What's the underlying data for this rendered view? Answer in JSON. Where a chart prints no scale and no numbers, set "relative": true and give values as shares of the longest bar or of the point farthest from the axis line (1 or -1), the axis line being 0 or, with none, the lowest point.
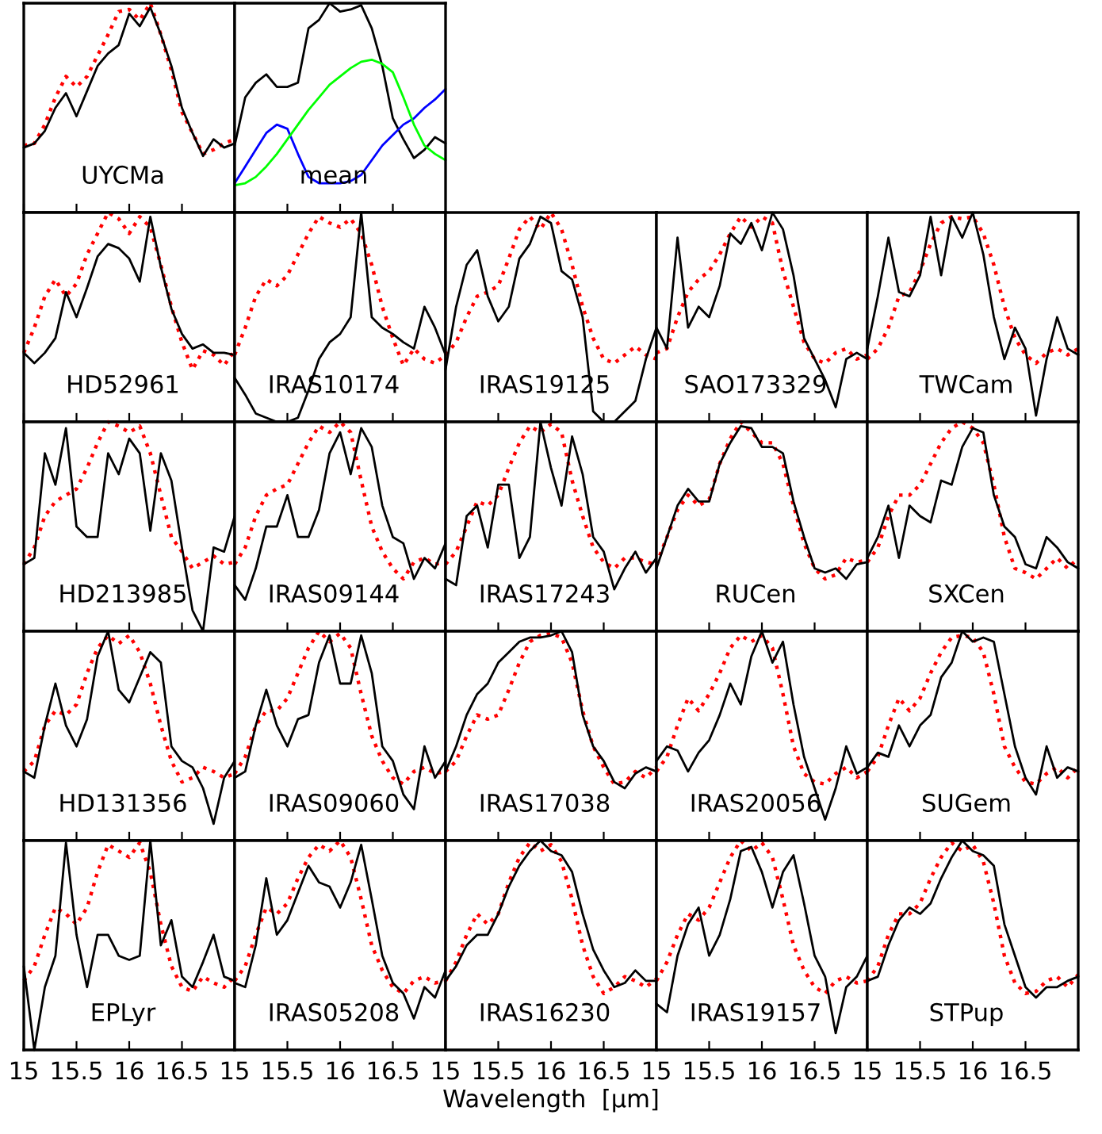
{
  "chart_data": [
    {
      "type": "line",
      "relative": true,
      "xlim": [
        15,
        17
      ],
      "xticks": [
        15,
        15.5,
        16,
        16.5
      ],
      "tick_labels": false,
      "annotations": [
        "UYCMa"
      ],
      "x": [
        15.0,
        15.1,
        15.2,
        15.3,
        15.4,
        15.5,
        15.6,
        15.7,
        15.8,
        15.9,
        16.0,
        16.1,
        16.2,
        16.3,
        16.4,
        16.5,
        16.6,
        16.7,
        16.8,
        16.9,
        17.0
      ],
      "series": [
        {
          "color": "#ff0000",
          "line_style": "dotted",
          "values": [
            0.32,
            0.33,
            0.42,
            0.55,
            0.65,
            0.6,
            0.65,
            0.75,
            0.85,
            0.96,
            0.97,
            0.92,
            1.0,
            0.85,
            0.68,
            0.48,
            0.38,
            0.28,
            0.3,
            0.33,
            0.35
          ]
        },
        {
          "color": "#000000",
          "line_style": "solid",
          "values": [
            0.31,
            0.33,
            0.39,
            0.5,
            0.57,
            0.46,
            0.58,
            0.7,
            0.76,
            0.8,
            0.95,
            0.89,
            0.98,
            0.85,
            0.7,
            0.5,
            0.38,
            0.27,
            0.35,
            0.31,
            0.33
          ]
        }
      ]
    },
    {
      "type": "line",
      "relative": true,
      "xlim": [
        15,
        17
      ],
      "xticks": [
        15,
        15.5,
        16,
        16.5
      ],
      "tick_labels": false,
      "annotations": [
        "mean"
      ],
      "x": [
        15.0,
        15.1,
        15.2,
        15.3,
        15.4,
        15.5,
        15.6,
        15.7,
        15.8,
        15.9,
        16.0,
        16.1,
        16.2,
        16.3,
        16.4,
        16.5,
        16.6,
        16.7,
        16.8,
        16.9,
        17.0
      ],
      "series": [
        {
          "color": "#000000",
          "line_style": "solid",
          "values": [
            0.32,
            0.55,
            0.62,
            0.66,
            0.6,
            0.6,
            0.62,
            0.88,
            0.92,
            1.0,
            0.96,
            0.97,
            0.99,
            0.88,
            0.7,
            0.45,
            0.35,
            0.26,
            0.3,
            0.36,
            0.33
          ]
        },
        {
          "color": "#0000ff",
          "line_style": "solid",
          "values": [
            0.14,
            0.22,
            0.3,
            0.38,
            0.42,
            0.4,
            0.28,
            0.17,
            0.14,
            0.14,
            0.14,
            0.15,
            0.18,
            0.25,
            0.32,
            0.37,
            0.42,
            0.45,
            0.5,
            0.54,
            0.59
          ]
        },
        {
          "color": "#00ff00",
          "line_style": "solid",
          "values": [
            0.13,
            0.14,
            0.17,
            0.22,
            0.28,
            0.35,
            0.42,
            0.49,
            0.55,
            0.61,
            0.65,
            0.69,
            0.72,
            0.73,
            0.71,
            0.67,
            0.55,
            0.42,
            0.32,
            0.28,
            0.25
          ]
        }
      ]
    },
    {
      "type": "line",
      "relative": true,
      "xlim": [
        15,
        17
      ],
      "xticks": [
        15,
        15.5,
        16,
        16.5
      ],
      "tick_labels": false,
      "annotations": [
        "HD52961"
      ],
      "x": [
        15.0,
        15.1,
        15.2,
        15.3,
        15.4,
        15.5,
        15.6,
        15.7,
        15.8,
        15.9,
        16.0,
        16.1,
        16.2,
        16.3,
        16.4,
        16.5,
        16.6,
        16.7,
        16.8,
        16.9,
        17.0
      ],
      "series": [
        {
          "color": "#ff0000",
          "line_style": "dotted",
          "values": [
            0.33,
            0.45,
            0.6,
            0.68,
            0.6,
            0.66,
            0.8,
            0.9,
            1.0,
            0.97,
            0.9,
            0.98,
            0.93,
            0.75,
            0.55,
            0.38,
            0.25,
            0.34,
            0.32,
            0.27,
            0.34
          ]
        },
        {
          "color": "#000000",
          "line_style": "solid",
          "values": [
            0.33,
            0.28,
            0.33,
            0.4,
            0.62,
            0.5,
            0.64,
            0.79,
            0.85,
            0.83,
            0.78,
            0.67,
            0.98,
            0.74,
            0.54,
            0.42,
            0.35,
            0.37,
            0.33,
            0.33,
            0.32
          ]
        }
      ]
    },
    {
      "type": "line",
      "relative": true,
      "xlim": [
        15,
        17
      ],
      "xticks": [
        15,
        15.5,
        16,
        16.5
      ],
      "tick_labels": false,
      "annotations": [
        "IRAS10174"
      ],
      "x": [
        15.0,
        15.1,
        15.2,
        15.3,
        15.4,
        15.5,
        15.6,
        15.7,
        15.8,
        15.9,
        16.0,
        16.1,
        16.2,
        16.3,
        16.4,
        16.5,
        16.6,
        16.7,
        16.8,
        16.9,
        17.0
      ],
      "series": [
        {
          "color": "#ff0000",
          "line_style": "dotted",
          "values": [
            0.32,
            0.45,
            0.6,
            0.68,
            0.65,
            0.7,
            0.8,
            0.9,
            0.98,
            0.95,
            0.93,
            0.97,
            0.9,
            0.75,
            0.55,
            0.4,
            0.27,
            0.35,
            0.3,
            0.28,
            0.32
          ]
        },
        {
          "color": "#000000",
          "line_style": "solid",
          "values": [
            0.21,
            0.13,
            0.04,
            0.02,
            0.0,
            0.0,
            0.02,
            0.15,
            0.3,
            0.38,
            0.42,
            0.5,
            1.0,
            0.5,
            0.45,
            0.42,
            0.38,
            0.35,
            0.55,
            0.45,
            0.32
          ]
        }
      ]
    },
    {
      "type": "line",
      "relative": true,
      "xlim": [
        15,
        17
      ],
      "xticks": [
        15,
        15.5,
        16,
        16.5
      ],
      "tick_labels": false,
      "annotations": [
        "IRAS19125"
      ],
      "x": [
        15.0,
        15.1,
        15.2,
        15.3,
        15.4,
        15.5,
        15.6,
        15.7,
        15.8,
        15.9,
        16.0,
        16.1,
        16.2,
        16.3,
        16.4,
        16.5,
        16.6,
        16.7,
        16.8,
        16.9,
        17.0
      ],
      "series": [
        {
          "color": "#ff0000",
          "line_style": "dotted",
          "values": [
            0.32,
            0.38,
            0.5,
            0.6,
            0.62,
            0.65,
            0.78,
            0.92,
            0.98,
            0.92,
            1.0,
            0.92,
            0.75,
            0.55,
            0.4,
            0.3,
            0.28,
            0.32,
            0.36,
            0.32,
            0.3
          ]
        },
        {
          "color": "#000000",
          "line_style": "solid",
          "values": [
            0.25,
            0.55,
            0.75,
            0.82,
            0.6,
            0.48,
            0.55,
            0.78,
            0.85,
            0.98,
            0.95,
            0.72,
            0.68,
            0.5,
            0.05,
            0.0,
            0.0,
            0.05,
            0.1,
            0.3,
            0.45
          ]
        }
      ]
    },
    {
      "type": "line",
      "relative": true,
      "xlim": [
        15,
        17
      ],
      "xticks": [
        15,
        15.5,
        16,
        16.5
      ],
      "tick_labels": false,
      "annotations": [
        "SAO173329"
      ],
      "x": [
        15.0,
        15.1,
        15.2,
        15.3,
        15.4,
        15.5,
        15.6,
        15.7,
        15.8,
        15.9,
        16.0,
        16.1,
        16.2,
        16.3,
        16.4,
        16.5,
        16.6,
        16.7,
        16.8,
        16.9,
        17.0
      ],
      "series": [
        {
          "color": "#ff0000",
          "line_style": "dotted",
          "values": [
            0.33,
            0.35,
            0.5,
            0.62,
            0.68,
            0.72,
            0.8,
            0.9,
            0.98,
            0.93,
            0.98,
            0.95,
            0.72,
            0.55,
            0.38,
            0.3,
            0.28,
            0.33,
            0.35,
            0.3,
            0.32
          ]
        },
        {
          "color": "#000000",
          "line_style": "solid",
          "values": [
            0.45,
            0.35,
            0.88,
            0.45,
            0.55,
            0.5,
            0.65,
            0.9,
            0.85,
            0.95,
            0.82,
            1.0,
            0.92,
            0.7,
            0.4,
            0.3,
            0.2,
            0.07,
            0.3,
            0.33,
            0.3
          ]
        }
      ]
    },
    {
      "type": "line",
      "relative": true,
      "xlim": [
        15,
        17
      ],
      "xticks": [
        15,
        15.5,
        16,
        16.5
      ],
      "tick_labels": false,
      "annotations": [
        "TWCam"
      ],
      "x": [
        15.0,
        15.1,
        15.2,
        15.3,
        15.4,
        15.5,
        15.6,
        15.7,
        15.8,
        15.9,
        16.0,
        16.1,
        16.2,
        16.3,
        16.4,
        16.5,
        16.6,
        16.7,
        16.8,
        16.9,
        17.0
      ],
      "series": [
        {
          "color": "#ff0000",
          "line_style": "dotted",
          "values": [
            0.3,
            0.35,
            0.45,
            0.6,
            0.62,
            0.72,
            0.85,
            0.95,
            0.98,
            0.97,
            0.98,
            0.9,
            0.75,
            0.55,
            0.4,
            0.32,
            0.28,
            0.33,
            0.35,
            0.32,
            0.35
          ]
        },
        {
          "color": "#000000",
          "line_style": "solid",
          "values": [
            0.35,
            0.6,
            0.88,
            0.62,
            0.6,
            0.7,
            0.98,
            0.7,
            0.98,
            0.88,
            1.0,
            0.8,
            0.5,
            0.3,
            0.45,
            0.35,
            0.03,
            0.3,
            0.5,
            0.35,
            0.32
          ]
        }
      ]
    },
    {
      "type": "line",
      "relative": true,
      "xlim": [
        15,
        17
      ],
      "xticks": [
        15,
        15.5,
        16,
        16.5
      ],
      "tick_labels": false,
      "annotations": [
        "HD213985"
      ],
      "x": [
        15.0,
        15.1,
        15.2,
        15.3,
        15.4,
        15.5,
        15.6,
        15.7,
        15.8,
        15.9,
        16.0,
        16.1,
        16.2,
        16.3,
        16.4,
        16.5,
        16.6,
        16.7,
        16.8,
        16.9,
        17.0
      ],
      "series": [
        {
          "color": "#ff0000",
          "line_style": "dotted",
          "values": [
            0.32,
            0.4,
            0.55,
            0.62,
            0.65,
            0.68,
            0.78,
            0.9,
            1.0,
            0.98,
            0.95,
            0.98,
            0.85,
            0.65,
            0.45,
            0.38,
            0.3,
            0.33,
            0.36,
            0.32,
            0.33
          ]
        },
        {
          "color": "#000000",
          "line_style": "solid",
          "values": [
            0.32,
            0.35,
            0.85,
            0.7,
            0.97,
            0.5,
            0.45,
            0.45,
            0.85,
            0.75,
            0.92,
            0.85,
            0.48,
            0.85,
            0.72,
            0.4,
            0.1,
            0.0,
            0.4,
            0.38,
            0.55
          ]
        }
      ]
    },
    {
      "type": "line",
      "relative": true,
      "xlim": [
        15,
        17
      ],
      "xticks": [
        15,
        15.5,
        16,
        16.5
      ],
      "tick_labels": false,
      "annotations": [
        "IRAS09144"
      ],
      "x": [
        15.0,
        15.1,
        15.2,
        15.3,
        15.4,
        15.5,
        15.6,
        15.7,
        15.8,
        15.9,
        16.0,
        16.1,
        16.2,
        16.3,
        16.4,
        16.5,
        16.6,
        16.7,
        16.8,
        16.9,
        17.0
      ],
      "series": [
        {
          "color": "#ff0000",
          "line_style": "dotted",
          "values": [
            0.32,
            0.4,
            0.55,
            0.65,
            0.68,
            0.7,
            0.8,
            0.9,
            0.98,
            0.95,
            1.0,
            0.95,
            0.72,
            0.5,
            0.38,
            0.3,
            0.25,
            0.33,
            0.35,
            0.32,
            0.33
          ]
        },
        {
          "color": "#000000",
          "line_style": "solid",
          "values": [
            0.22,
            0.15,
            0.3,
            0.5,
            0.5,
            0.65,
            0.45,
            0.45,
            0.58,
            0.85,
            0.95,
            0.75,
            0.97,
            0.88,
            0.6,
            0.45,
            0.42,
            0.25,
            0.35,
            0.3,
            0.42
          ]
        }
      ]
    },
    {
      "type": "line",
      "relative": true,
      "xlim": [
        15,
        17
      ],
      "xticks": [
        15,
        15.5,
        16,
        16.5
      ],
      "tick_labels": false,
      "annotations": [
        "IRAS17243"
      ],
      "x": [
        15.0,
        15.1,
        15.2,
        15.3,
        15.4,
        15.5,
        15.6,
        15.7,
        15.8,
        15.9,
        16.0,
        16.1,
        16.2,
        16.3,
        16.4,
        16.5,
        16.6,
        16.7,
        16.8,
        16.9,
        17.0
      ],
      "series": [
        {
          "color": "#ff0000",
          "line_style": "dotted",
          "values": [
            0.32,
            0.38,
            0.5,
            0.62,
            0.6,
            0.65,
            0.78,
            0.9,
            0.98,
            0.95,
            0.99,
            0.95,
            0.72,
            0.55,
            0.4,
            0.33,
            0.3,
            0.35,
            0.35,
            0.33,
            0.32
          ]
        },
        {
          "color": "#000000",
          "line_style": "solid",
          "values": [
            0.25,
            0.22,
            0.55,
            0.6,
            0.4,
            0.7,
            0.7,
            0.35,
            0.45,
            1.0,
            0.78,
            0.6,
            0.93,
            0.75,
            0.45,
            0.38,
            0.2,
            0.3,
            0.38,
            0.28,
            0.35
          ]
        }
      ]
    },
    {
      "type": "line",
      "relative": true,
      "xlim": [
        15,
        17
      ],
      "xticks": [
        15,
        15.5,
        16,
        16.5
      ],
      "tick_labels": false,
      "annotations": [
        "RUCen"
      ],
      "x": [
        15.0,
        15.1,
        15.2,
        15.3,
        15.4,
        15.5,
        15.6,
        15.7,
        15.8,
        15.9,
        16.0,
        16.1,
        16.2,
        16.3,
        16.4,
        16.5,
        16.6,
        16.7,
        16.8,
        16.9,
        17.0
      ],
      "series": [
        {
          "color": "#ff0000",
          "line_style": "dotted",
          "values": [
            0.32,
            0.45,
            0.58,
            0.65,
            0.6,
            0.63,
            0.8,
            0.92,
            1.0,
            0.95,
            0.9,
            0.9,
            0.8,
            0.6,
            0.42,
            0.3,
            0.25,
            0.27,
            0.35,
            0.33,
            0.34
          ]
        },
        {
          "color": "#000000",
          "line_style": "solid",
          "values": [
            0.3,
            0.45,
            0.6,
            0.68,
            0.62,
            0.62,
            0.8,
            0.9,
            0.98,
            0.97,
            0.88,
            0.88,
            0.85,
            0.62,
            0.45,
            0.3,
            0.28,
            0.3,
            0.25,
            0.32,
            0.33
          ]
        }
      ]
    },
    {
      "type": "line",
      "relative": true,
      "xlim": [
        15,
        17
      ],
      "xticks": [
        15,
        15.5,
        16,
        16.5
      ],
      "tick_labels": false,
      "annotations": [
        "SXCen"
      ],
      "x": [
        15.0,
        15.1,
        15.2,
        15.3,
        15.4,
        15.5,
        15.6,
        15.7,
        15.8,
        15.9,
        16.0,
        16.1,
        16.2,
        16.3,
        16.4,
        16.5,
        16.6,
        16.7,
        16.8,
        16.9,
        17.0
      ],
      "series": [
        {
          "color": "#ff0000",
          "line_style": "dotted",
          "values": [
            0.33,
            0.4,
            0.55,
            0.65,
            0.65,
            0.7,
            0.8,
            0.9,
            0.97,
            1.0,
            0.97,
            0.9,
            0.7,
            0.45,
            0.3,
            0.28,
            0.25,
            0.3,
            0.35,
            0.3,
            0.35
          ]
        },
        {
          "color": "#000000",
          "line_style": "solid",
          "values": [
            0.35,
            0.45,
            0.6,
            0.35,
            0.6,
            0.55,
            0.52,
            0.72,
            0.7,
            0.88,
            0.97,
            0.95,
            0.65,
            0.5,
            0.45,
            0.32,
            0.3,
            0.45,
            0.4,
            0.33,
            0.3
          ]
        }
      ]
    },
    {
      "type": "line",
      "relative": true,
      "xlim": [
        15,
        17
      ],
      "xticks": [
        15,
        15.5,
        16,
        16.5
      ],
      "tick_labels": false,
      "annotations": [
        "HD131356"
      ],
      "x": [
        15.0,
        15.1,
        15.2,
        15.3,
        15.4,
        15.5,
        15.6,
        15.7,
        15.8,
        15.9,
        16.0,
        16.1,
        16.2,
        16.3,
        16.4,
        16.5,
        16.6,
        16.7,
        16.8,
        16.9,
        17.0
      ],
      "series": [
        {
          "color": "#ff0000",
          "line_style": "dotted",
          "values": [
            0.33,
            0.38,
            0.55,
            0.62,
            0.6,
            0.65,
            0.8,
            0.92,
            0.98,
            0.94,
            0.98,
            0.9,
            0.75,
            0.55,
            0.38,
            0.28,
            0.3,
            0.35,
            0.33,
            0.3,
            0.32
          ]
        },
        {
          "color": "#000000",
          "line_style": "solid",
          "values": [
            0.33,
            0.3,
            0.55,
            0.75,
            0.55,
            0.45,
            0.58,
            0.88,
            1.0,
            0.72,
            0.66,
            0.78,
            0.9,
            0.85,
            0.45,
            0.38,
            0.35,
            0.25,
            0.08,
            0.3,
            0.38
          ]
        }
      ]
    },
    {
      "type": "line",
      "relative": true,
      "xlim": [
        15,
        17
      ],
      "xticks": [
        15,
        15.5,
        16,
        16.5
      ],
      "tick_labels": false,
      "annotations": [
        "IRAS09060"
      ],
      "x": [
        15.0,
        15.1,
        15.2,
        15.3,
        15.4,
        15.5,
        15.6,
        15.7,
        15.8,
        15.9,
        16.0,
        16.1,
        16.2,
        16.3,
        16.4,
        16.5,
        16.6,
        16.7,
        16.8,
        16.9,
        17.0
      ],
      "series": [
        {
          "color": "#ff0000",
          "line_style": "dotted",
          "values": [
            0.32,
            0.4,
            0.55,
            0.62,
            0.62,
            0.68,
            0.8,
            0.92,
            1.0,
            0.95,
            0.99,
            0.92,
            0.7,
            0.5,
            0.38,
            0.3,
            0.27,
            0.33,
            0.35,
            0.32,
            0.33
          ]
        },
        {
          "color": "#000000",
          "line_style": "solid",
          "values": [
            0.3,
            0.33,
            0.55,
            0.72,
            0.55,
            0.45,
            0.58,
            0.6,
            0.85,
            0.98,
            0.75,
            0.75,
            0.98,
            0.8,
            0.45,
            0.38,
            0.22,
            0.15,
            0.45,
            0.3,
            0.38
          ]
        }
      ]
    },
    {
      "type": "line",
      "relative": true,
      "xlim": [
        15,
        17
      ],
      "xticks": [
        15,
        15.5,
        16,
        16.5
      ],
      "tick_labels": false,
      "annotations": [
        "IRAS17038"
      ],
      "x": [
        15.0,
        15.1,
        15.2,
        15.3,
        15.4,
        15.5,
        15.6,
        15.7,
        15.8,
        15.9,
        16.0,
        16.1,
        16.2,
        16.3,
        16.4,
        16.5,
        16.6,
        16.7,
        16.8,
        16.9,
        17.0
      ],
      "series": [
        {
          "color": "#ff0000",
          "line_style": "dotted",
          "values": [
            0.33,
            0.38,
            0.5,
            0.6,
            0.58,
            0.6,
            0.72,
            0.85,
            0.95,
            0.98,
            0.99,
            0.97,
            0.85,
            0.62,
            0.45,
            0.35,
            0.27,
            0.28,
            0.33,
            0.3,
            0.35
          ]
        },
        {
          "color": "#000000",
          "line_style": "solid",
          "values": [
            0.33,
            0.45,
            0.6,
            0.7,
            0.75,
            0.85,
            0.9,
            0.95,
            0.97,
            0.97,
            0.98,
            1.0,
            0.9,
            0.6,
            0.45,
            0.38,
            0.28,
            0.25,
            0.32,
            0.35,
            0.33
          ]
        }
      ]
    },
    {
      "type": "line",
      "relative": true,
      "xlim": [
        15,
        17
      ],
      "xticks": [
        15,
        15.5,
        16,
        16.5
      ],
      "tick_labels": false,
      "annotations": [
        "IRAS20056"
      ],
      "x": [
        15.0,
        15.1,
        15.2,
        15.3,
        15.4,
        15.5,
        15.6,
        15.7,
        15.8,
        15.9,
        16.0,
        16.1,
        16.2,
        16.3,
        16.4,
        16.5,
        16.6,
        16.7,
        16.8,
        16.9,
        17.0
      ],
      "series": [
        {
          "color": "#ff0000",
          "line_style": "dotted",
          "values": [
            0.33,
            0.4,
            0.55,
            0.68,
            0.62,
            0.7,
            0.8,
            0.92,
            0.98,
            0.95,
            0.98,
            0.92,
            0.7,
            0.45,
            0.32,
            0.28,
            0.27,
            0.32,
            0.35,
            0.3,
            0.33
          ]
        },
        {
          "color": "#000000",
          "line_style": "solid",
          "values": [
            0.38,
            0.45,
            0.43,
            0.33,
            0.42,
            0.48,
            0.6,
            0.75,
            0.65,
            0.88,
            1.0,
            0.85,
            0.95,
            0.65,
            0.4,
            0.25,
            0.1,
            0.25,
            0.45,
            0.32,
            0.35
          ]
        }
      ]
    },
    {
      "type": "line",
      "relative": true,
      "xlim": [
        15,
        17
      ],
      "xticks": [
        15,
        15.5,
        16,
        16.5
      ],
      "tick_labels": false,
      "annotations": [
        "SUGem"
      ],
      "x": [
        15.0,
        15.1,
        15.2,
        15.3,
        15.4,
        15.5,
        15.6,
        15.7,
        15.8,
        15.9,
        16.0,
        16.1,
        16.2,
        16.3,
        16.4,
        16.5,
        16.6,
        16.7,
        16.8,
        16.9,
        17.0
      ],
      "series": [
        {
          "color": "#ff0000",
          "line_style": "dotted",
          "values": [
            0.33,
            0.4,
            0.55,
            0.68,
            0.62,
            0.68,
            0.8,
            0.9,
            0.97,
            0.98,
            0.97,
            0.9,
            0.7,
            0.45,
            0.35,
            0.28,
            0.27,
            0.32,
            0.35,
            0.3,
            0.35
          ]
        },
        {
          "color": "#000000",
          "line_style": "solid",
          "values": [
            0.35,
            0.42,
            0.4,
            0.55,
            0.45,
            0.55,
            0.6,
            0.78,
            0.85,
            1.0,
            0.95,
            0.97,
            0.95,
            0.7,
            0.45,
            0.3,
            0.22,
            0.45,
            0.3,
            0.35,
            0.33
          ]
        }
      ]
    },
    {
      "type": "line",
      "relative": true,
      "xlim": [
        15,
        17
      ],
      "xticks": [
        15,
        15.5,
        16,
        16.5
      ],
      "tick_labels": "x",
      "annotations": [
        "EPLyr"
      ],
      "x": [
        15.0,
        15.1,
        15.2,
        15.3,
        15.4,
        15.5,
        15.6,
        15.7,
        15.8,
        15.9,
        16.0,
        16.1,
        16.2,
        16.3,
        16.4,
        16.5,
        16.6,
        16.7,
        16.8,
        16.9,
        17.0
      ],
      "series": [
        {
          "color": "#ff0000",
          "line_style": "dotted",
          "values": [
            0.33,
            0.4,
            0.55,
            0.68,
            0.65,
            0.6,
            0.68,
            0.85,
            0.98,
            0.95,
            0.92,
            0.99,
            0.85,
            0.6,
            0.4,
            0.3,
            0.28,
            0.35,
            0.32,
            0.3,
            0.35
          ]
        },
        {
          "color": "#000000",
          "line_style": "solid",
          "values": [
            0.4,
            0.0,
            0.3,
            0.45,
            0.99,
            0.55,
            0.3,
            0.55,
            0.55,
            0.45,
            0.43,
            0.45,
            1.0,
            0.5,
            0.62,
            0.35,
            0.3,
            0.42,
            0.55,
            0.35,
            0.33
          ]
        }
      ]
    },
    {
      "type": "line",
      "relative": true,
      "xlim": [
        15,
        17
      ],
      "xticks": [
        15,
        15.5,
        16,
        16.5
      ],
      "tick_labels": "x",
      "annotations": [
        "IRAS05208"
      ],
      "x": [
        15.0,
        15.1,
        15.2,
        15.3,
        15.4,
        15.5,
        15.6,
        15.7,
        15.8,
        15.9,
        16.0,
        16.1,
        16.2,
        16.3,
        16.4,
        16.5,
        16.6,
        16.7,
        16.8,
        16.9,
        17.0
      ],
      "series": [
        {
          "color": "#ff0000",
          "line_style": "dotted",
          "values": [
            0.33,
            0.4,
            0.55,
            0.68,
            0.65,
            0.7,
            0.82,
            0.92,
            0.98,
            0.95,
            1.0,
            0.92,
            0.72,
            0.5,
            0.38,
            0.3,
            0.27,
            0.33,
            0.35,
            0.32,
            0.33
          ]
        },
        {
          "color": "#000000",
          "line_style": "solid",
          "values": [
            0.32,
            0.3,
            0.5,
            0.82,
            0.55,
            0.62,
            0.75,
            0.88,
            0.8,
            0.78,
            0.68,
            0.8,
            0.98,
            0.72,
            0.45,
            0.32,
            0.27,
            0.15,
            0.3,
            0.25,
            0.38
          ]
        }
      ]
    },
    {
      "type": "line",
      "relative": true,
      "xlim": [
        15,
        17
      ],
      "xticks": [
        15,
        15.5,
        16,
        16.5
      ],
      "tick_labels": "x",
      "xlabel": "Wavelength  [μm]",
      "annotations": [
        "IRAS16230"
      ],
      "x": [
        15.0,
        15.1,
        15.2,
        15.3,
        15.4,
        15.5,
        15.6,
        15.7,
        15.8,
        15.9,
        16.0,
        16.1,
        16.2,
        16.3,
        16.4,
        16.5,
        16.6,
        16.7,
        16.8,
        16.9,
        17.0
      ],
      "series": [
        {
          "color": "#ff0000",
          "line_style": "dotted",
          "values": [
            0.33,
            0.42,
            0.55,
            0.65,
            0.6,
            0.65,
            0.8,
            0.92,
            0.99,
            0.95,
            0.98,
            0.9,
            0.72,
            0.5,
            0.35,
            0.27,
            0.3,
            0.35,
            0.33,
            0.3,
            0.34
          ]
        },
        {
          "color": "#000000",
          "line_style": "solid",
          "values": [
            0.33,
            0.4,
            0.5,
            0.55,
            0.55,
            0.65,
            0.78,
            0.88,
            0.95,
            1.0,
            0.95,
            0.93,
            0.85,
            0.65,
            0.48,
            0.38,
            0.3,
            0.32,
            0.38,
            0.33,
            0.33
          ]
        }
      ]
    },
    {
      "type": "line",
      "relative": true,
      "xlim": [
        15,
        17
      ],
      "xticks": [
        15,
        15.5,
        16,
        16.5
      ],
      "tick_labels": "x",
      "annotations": [
        "IRAS19157"
      ],
      "x": [
        15.0,
        15.1,
        15.2,
        15.3,
        15.4,
        15.5,
        15.6,
        15.7,
        15.8,
        15.9,
        16.0,
        16.1,
        16.2,
        16.3,
        16.4,
        16.5,
        16.6,
        16.7,
        16.8,
        16.9,
        17.0
      ],
      "series": [
        {
          "color": "#ff0000",
          "line_style": "dotted",
          "values": [
            0.33,
            0.42,
            0.55,
            0.65,
            0.62,
            0.68,
            0.8,
            0.92,
            1.0,
            0.95,
            0.99,
            0.92,
            0.72,
            0.5,
            0.38,
            0.3,
            0.27,
            0.33,
            0.35,
            0.32,
            0.33
          ]
        },
        {
          "color": "#000000",
          "line_style": "solid",
          "values": [
            0.22,
            0.18,
            0.45,
            0.6,
            0.68,
            0.45,
            0.55,
            0.72,
            0.95,
            0.97,
            0.85,
            0.68,
            0.85,
            0.93,
            0.7,
            0.45,
            0.35,
            0.08,
            0.3,
            0.35,
            0.45
          ]
        }
      ]
    },
    {
      "type": "line",
      "relative": true,
      "xlim": [
        15,
        17
      ],
      "xticks": [
        15,
        15.5,
        16,
        16.5
      ],
      "tick_labels": "x",
      "annotations": [
        "STPup"
      ],
      "x": [
        15.0,
        15.1,
        15.2,
        15.3,
        15.4,
        15.5,
        15.6,
        15.7,
        15.8,
        15.9,
        16.0,
        16.1,
        16.2,
        16.3,
        16.4,
        16.5,
        16.6,
        16.7,
        16.8,
        16.9,
        17.0
      ],
      "series": [
        {
          "color": "#ff0000",
          "line_style": "dotted",
          "values": [
            0.33,
            0.4,
            0.55,
            0.65,
            0.65,
            0.7,
            0.82,
            0.92,
            0.99,
            0.95,
            0.98,
            0.9,
            0.7,
            0.45,
            0.32,
            0.27,
            0.28,
            0.33,
            0.35,
            0.3,
            0.36
          ]
        },
        {
          "color": "#000000",
          "line_style": "solid",
          "values": [
            0.33,
            0.35,
            0.5,
            0.62,
            0.68,
            0.65,
            0.7,
            0.82,
            0.92,
            1.0,
            0.95,
            0.93,
            0.88,
            0.6,
            0.45,
            0.3,
            0.25,
            0.3,
            0.3,
            0.33,
            0.35
          ]
        }
      ]
    }
  ]
}
